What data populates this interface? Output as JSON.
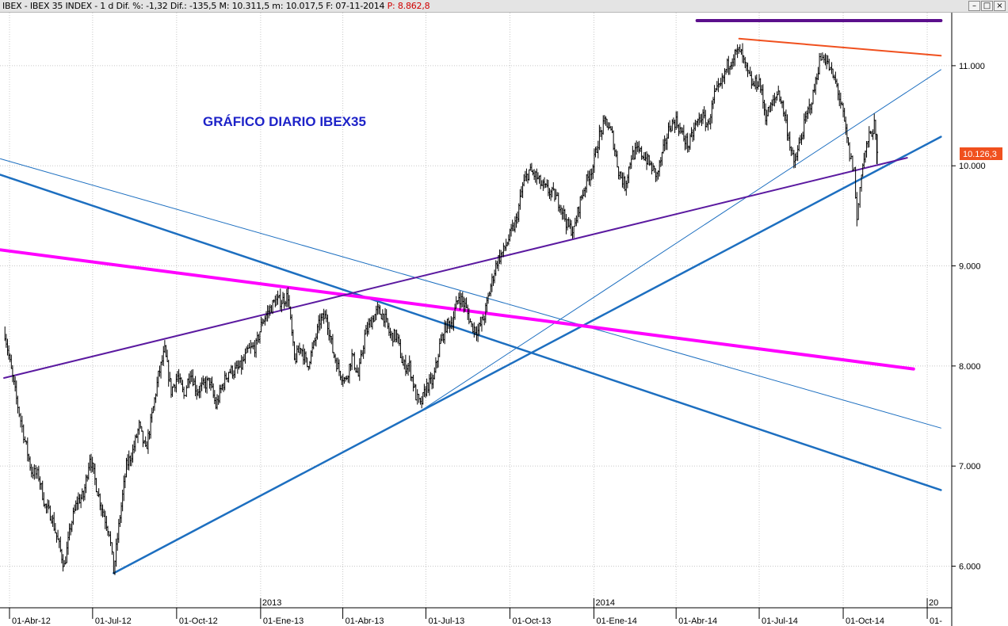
{
  "window": {
    "title": "IBEX - IBEX 35 INDEX - 1 d Dif. %: -1,32 Dif.: -135,5 M: 10.311,5 m: 10.017,5 F: 07-11-2014",
    "title_extra": "P: 8.862,8",
    "buttons": [
      "–",
      "□",
      "×"
    ]
  },
  "chart_data": {
    "type": "line",
    "annotation": "GRÁFICO DIARIO IBEX35",
    "last_value_label": "10.126,3",
    "last_value_color": "#f0501e",
    "y_axis": {
      "position": "right",
      "ticks": [
        "6.000",
        "7.000",
        "8.000",
        "9.000",
        "10.000",
        "11.000"
      ],
      "range": [
        5880,
        11480
      ]
    },
    "x_axis": {
      "month_labels": [
        "01-Abr-12",
        "01-Jul-12",
        "01-Oct-12",
        "01-Ene-13",
        "01-Abr-13",
        "01-Jul-13",
        "01-Oct-13",
        "01-Ene-14",
        "01-Abr-14",
        "01-Jul-14",
        "01-Oct-14",
        "01-"
      ],
      "year_labels": [
        "2013",
        "2014",
        "20"
      ]
    },
    "price_path": [
      [
        "2012-03-27",
        8330
      ],
      [
        "2012-04-03",
        7950
      ],
      [
        "2012-04-10",
        7600
      ],
      [
        "2012-04-18",
        7250
      ],
      [
        "2012-04-25",
        6950
      ],
      [
        "2012-05-03",
        6900
      ],
      [
        "2012-05-10",
        6600
      ],
      [
        "2012-05-17",
        6500
      ],
      [
        "2012-05-24",
        6250
      ],
      [
        "2012-05-31",
        6000
      ],
      [
        "2012-06-07",
        6400
      ],
      [
        "2012-06-14",
        6650
      ],
      [
        "2012-06-21",
        6700
      ],
      [
        "2012-06-28",
        7100
      ],
      [
        "2012-07-05",
        6800
      ],
      [
        "2012-07-12",
        6550
      ],
      [
        "2012-07-19",
        6350
      ],
      [
        "2012-07-24",
        5950
      ],
      [
        "2012-07-31",
        6500
      ],
      [
        "2012-08-07",
        7000
      ],
      [
        "2012-08-14",
        7150
      ],
      [
        "2012-08-21",
        7400
      ],
      [
        "2012-08-28",
        7150
      ],
      [
        "2012-09-04",
        7500
      ],
      [
        "2012-09-11",
        7900
      ],
      [
        "2012-09-18",
        8150
      ],
      [
        "2012-09-25",
        7750
      ],
      [
        "2012-10-02",
        7900
      ],
      [
        "2012-10-09",
        7700
      ],
      [
        "2012-10-16",
        7950
      ],
      [
        "2012-10-23",
        7750
      ],
      [
        "2012-10-30",
        7800
      ],
      [
        "2012-11-06",
        7850
      ],
      [
        "2012-11-13",
        7600
      ],
      [
        "2012-11-20",
        7800
      ],
      [
        "2012-11-27",
        7950
      ],
      [
        "2012-12-04",
        7950
      ],
      [
        "2012-12-11",
        8000
      ],
      [
        "2012-12-18",
        8150
      ],
      [
        "2012-12-27",
        8200
      ],
      [
        "2013-01-03",
        8450
      ],
      [
        "2013-01-10",
        8550
      ],
      [
        "2013-01-17",
        8650
      ],
      [
        "2013-01-24",
        8650
      ],
      [
        "2013-01-31",
        8700
      ],
      [
        "2013-02-07",
        8050
      ],
      [
        "2013-02-14",
        8200
      ],
      [
        "2013-02-21",
        8000
      ],
      [
        "2013-02-28",
        8200
      ],
      [
        "2013-03-07",
        8450
      ],
      [
        "2013-03-14",
        8500
      ],
      [
        "2013-03-21",
        8150
      ],
      [
        "2013-03-28",
        7950
      ],
      [
        "2013-04-04",
        7850
      ],
      [
        "2013-04-11",
        8100
      ],
      [
        "2013-04-18",
        7900
      ],
      [
        "2013-04-25",
        8300
      ],
      [
        "2013-05-02",
        8450
      ],
      [
        "2013-05-09",
        8550
      ],
      [
        "2013-05-16",
        8500
      ],
      [
        "2013-05-23",
        8300
      ],
      [
        "2013-05-30",
        8300
      ],
      [
        "2013-06-06",
        8000
      ],
      [
        "2013-06-13",
        8000
      ],
      [
        "2013-06-20",
        7700
      ],
      [
        "2013-06-25",
        7600
      ],
      [
        "2013-07-02",
        7800
      ],
      [
        "2013-07-09",
        7850
      ],
      [
        "2013-07-16",
        8200
      ],
      [
        "2013-07-23",
        8400
      ],
      [
        "2013-07-30",
        8450
      ],
      [
        "2013-08-06",
        8700
      ],
      [
        "2013-08-13",
        8600
      ],
      [
        "2013-08-20",
        8400
      ],
      [
        "2013-08-27",
        8350
      ],
      [
        "2013-09-03",
        8500
      ],
      [
        "2013-09-10",
        8800
      ],
      [
        "2013-09-17",
        9050
      ],
      [
        "2013-09-24",
        9150
      ],
      [
        "2013-10-01",
        9300
      ],
      [
        "2013-10-08",
        9450
      ],
      [
        "2013-10-15",
        9800
      ],
      [
        "2013-10-22",
        9950
      ],
      [
        "2013-10-29",
        9900
      ],
      [
        "2013-11-05",
        9800
      ],
      [
        "2013-11-12",
        9750
      ],
      [
        "2013-11-19",
        9700
      ],
      [
        "2013-11-26",
        9600
      ],
      [
        "2013-12-03",
        9400
      ],
      [
        "2013-12-10",
        9350
      ],
      [
        "2013-12-17",
        9650
      ],
      [
        "2013-12-24",
        9850
      ],
      [
        "2013-12-31",
        10000
      ],
      [
        "2014-01-07",
        10300
      ],
      [
        "2014-01-14",
        10450
      ],
      [
        "2014-01-21",
        10300
      ],
      [
        "2014-01-28",
        9950
      ],
      [
        "2014-02-04",
        9800
      ],
      [
        "2014-02-11",
        10100
      ],
      [
        "2014-02-18",
        10150
      ],
      [
        "2014-02-25",
        10100
      ],
      [
        "2014-03-04",
        10000
      ],
      [
        "2014-03-11",
        9900
      ],
      [
        "2014-03-18",
        10150
      ],
      [
        "2014-03-25",
        10400
      ],
      [
        "2014-04-01",
        10450
      ],
      [
        "2014-04-08",
        10300
      ],
      [
        "2014-04-15",
        10200
      ],
      [
        "2014-04-22",
        10400
      ],
      [
        "2014-04-29",
        10500
      ],
      [
        "2014-05-06",
        10400
      ],
      [
        "2014-05-13",
        10700
      ],
      [
        "2014-05-20",
        10800
      ],
      [
        "2014-05-27",
        11000
      ],
      [
        "2014-06-03",
        11100
      ],
      [
        "2014-06-10",
        11150
      ],
      [
        "2014-06-17",
        10950
      ],
      [
        "2014-06-24",
        10800
      ],
      [
        "2014-07-01",
        10850
      ],
      [
        "2014-07-08",
        10500
      ],
      [
        "2014-07-15",
        10600
      ],
      [
        "2014-07-22",
        10750
      ],
      [
        "2014-07-29",
        10500
      ],
      [
        "2014-08-05",
        10150
      ],
      [
        "2014-08-08",
        10000
      ],
      [
        "2014-08-15",
        10250
      ],
      [
        "2014-08-22",
        10500
      ],
      [
        "2014-08-29",
        10700
      ],
      [
        "2014-09-05",
        11050
      ],
      [
        "2014-09-10",
        11100
      ],
      [
        "2014-09-17",
        10950
      ],
      [
        "2014-09-24",
        10800
      ],
      [
        "2014-10-01",
        10500
      ],
      [
        "2014-10-08",
        10100
      ],
      [
        "2014-10-13",
        9950
      ],
      [
        "2014-10-16",
        9450
      ],
      [
        "2014-10-21",
        9950
      ],
      [
        "2014-10-28",
        10250
      ],
      [
        "2014-11-04",
        10400
      ],
      [
        "2014-11-07",
        10126
      ]
    ],
    "trendlines": [
      {
        "color": "#1d6fc0",
        "width": 2.5,
        "points": [
          [
            "2012-07-24",
            5930
          ],
          [
            "2015-01-16",
            10290
          ]
        ]
      },
      {
        "color": "#1d6fc0",
        "width": 1,
        "points": [
          [
            "2013-06-25",
            7550
          ],
          [
            "2015-01-16",
            10960
          ]
        ]
      },
      {
        "color": "#1d6fc0",
        "width": 2.5,
        "points": [
          [
            "2012-03-22",
            9910
          ],
          [
            "2015-01-16",
            6760
          ]
        ]
      },
      {
        "color": "#1d6fc0",
        "width": 1,
        "points": [
          [
            "2012-03-22",
            10070
          ],
          [
            "2015-01-16",
            7380
          ]
        ]
      },
      {
        "color": "#ff00ff",
        "width": 4,
        "points": [
          [
            "2012-03-22",
            9160
          ],
          [
            "2014-12-17",
            7970
          ]
        ]
      },
      {
        "color": "#5b1aa0",
        "width": 2,
        "points": [
          [
            "2012-03-26",
            7880
          ],
          [
            "2014-12-10",
            10080
          ]
        ]
      },
      {
        "color": "#f0501e",
        "width": 2,
        "points": [
          [
            "2014-06-09",
            11270
          ],
          [
            "2015-01-16",
            11100
          ]
        ]
      },
      {
        "color": "#5b0f8c",
        "width": 4,
        "points": [
          [
            "2014-04-24",
            11450
          ],
          [
            "2015-01-16",
            11450
          ]
        ]
      }
    ]
  }
}
